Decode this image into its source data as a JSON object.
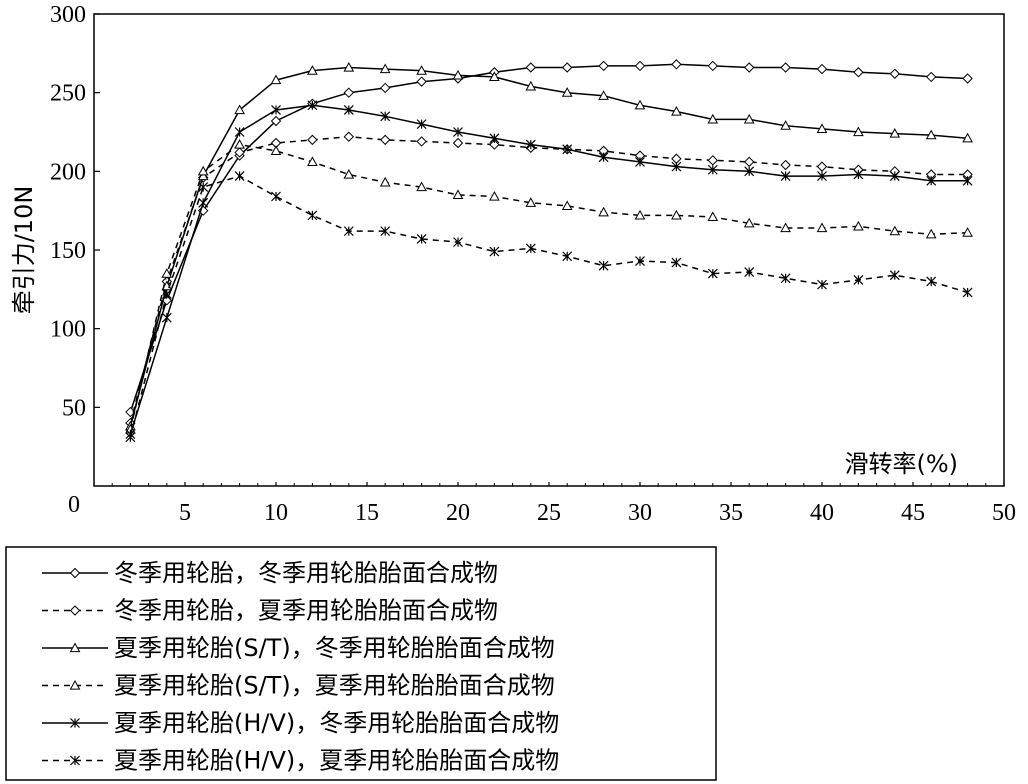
{
  "chart_data": {
    "type": "line",
    "title": "",
    "xlabel": "滑转率(%)",
    "ylabel": "牵引力/10N",
    "xlim": [
      0,
      50
    ],
    "ylim": [
      0,
      300
    ],
    "xticks": [
      5,
      10,
      15,
      20,
      25,
      30,
      35,
      40,
      45,
      50
    ],
    "yticks": [
      50,
      100,
      150,
      200,
      250,
      300
    ],
    "origin_label": "0",
    "grid": false,
    "legend_position": "bottom-left-outside",
    "series": [
      {
        "name": "冬季用轮胎，冬季用轮胎胎面合成物",
        "marker": "diamond",
        "line": "solid",
        "x": [
          2,
          4,
          6,
          8,
          10,
          12,
          14,
          16,
          18,
          20,
          22,
          24,
          26,
          28,
          30,
          32,
          34,
          36,
          38,
          40,
          42,
          44,
          46,
          48
        ],
        "y": [
          47,
          118,
          175,
          210,
          232,
          243,
          250,
          253,
          257,
          259,
          263,
          266,
          266,
          267,
          267,
          268,
          267,
          266,
          266,
          265,
          263,
          262,
          260,
          259
        ]
      },
      {
        "name": "冬季用轮胎，夏季用轮胎胎面合成物",
        "marker": "diamond",
        "line": "dashed",
        "x": [
          2,
          4,
          6,
          8,
          10,
          12,
          14,
          16,
          18,
          20,
          22,
          24,
          26,
          28,
          30,
          32,
          34,
          36,
          38,
          40,
          42,
          44,
          46,
          48
        ],
        "y": [
          40,
          130,
          196,
          212,
          218,
          220,
          222,
          220,
          219,
          218,
          217,
          215,
          214,
          213,
          210,
          208,
          207,
          206,
          204,
          203,
          201,
          200,
          198,
          198
        ]
      },
      {
        "name": "夏季用轮胎(S/T)，冬季用轮胎胎面合成物",
        "marker": "triangle",
        "line": "solid",
        "x": [
          2,
          4,
          6,
          8,
          10,
          12,
          14,
          16,
          18,
          20,
          22,
          24,
          26,
          28,
          30,
          32,
          34,
          36,
          38,
          40,
          42,
          44,
          46,
          48
        ],
        "y": [
          38,
          127,
          197,
          239,
          258,
          264,
          266,
          265,
          264,
          261,
          260,
          254,
          250,
          248,
          242,
          238,
          233,
          233,
          229,
          227,
          225,
          224,
          223,
          221
        ]
      },
      {
        "name": "夏季用轮胎(S/T)，夏季用轮胎胎面合成物",
        "marker": "triangle",
        "line": "dashed",
        "x": [
          2,
          4,
          6,
          8,
          10,
          12,
          14,
          16,
          18,
          20,
          22,
          24,
          26,
          28,
          30,
          32,
          34,
          36,
          38,
          40,
          42,
          44,
          46,
          48
        ],
        "y": [
          36,
          135,
          200,
          217,
          213,
          206,
          198,
          193,
          190,
          185,
          184,
          180,
          178,
          174,
          172,
          172,
          171,
          167,
          164,
          164,
          165,
          162,
          160,
          161
        ]
      },
      {
        "name": "夏季用轮胎(H/V)，冬季用轮胎胎面合成物",
        "marker": "asterisk",
        "line": "solid",
        "x": [
          2,
          4,
          6,
          8,
          10,
          12,
          14,
          16,
          18,
          20,
          22,
          24,
          26,
          28,
          30,
          32,
          34,
          36,
          38,
          40,
          42,
          44,
          46,
          48
        ],
        "y": [
          33,
          107,
          180,
          225,
          239,
          242,
          239,
          235,
          230,
          225,
          221,
          217,
          214,
          209,
          206,
          203,
          201,
          200,
          197,
          197,
          198,
          197,
          194,
          194
        ]
      },
      {
        "name": "夏季用轮胎(H/V)，夏季用轮胎胎面合成物",
        "marker": "asterisk",
        "line": "dashed",
        "x": [
          2,
          4,
          6,
          8,
          10,
          12,
          14,
          16,
          18,
          20,
          22,
          24,
          26,
          28,
          30,
          32,
          34,
          36,
          38,
          40,
          42,
          44,
          46,
          48
        ],
        "y": [
          31,
          122,
          190,
          197,
          184,
          172,
          162,
          162,
          157,
          155,
          149,
          151,
          146,
          140,
          143,
          142,
          135,
          136,
          132,
          128,
          131,
          134,
          130,
          123
        ]
      }
    ]
  }
}
